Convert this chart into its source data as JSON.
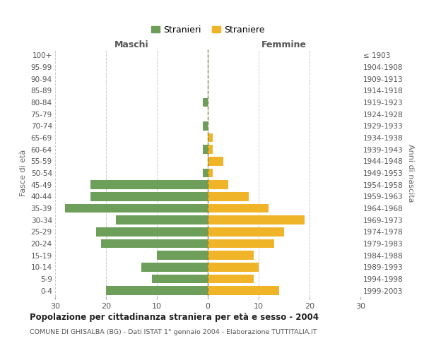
{
  "age_groups": [
    "0-4",
    "5-9",
    "10-14",
    "15-19",
    "20-24",
    "25-29",
    "30-34",
    "35-39",
    "40-44",
    "45-49",
    "50-54",
    "55-59",
    "60-64",
    "65-69",
    "70-74",
    "75-79",
    "80-84",
    "85-89",
    "90-94",
    "95-99",
    "100+"
  ],
  "birth_years": [
    "1999-2003",
    "1994-1998",
    "1989-1993",
    "1984-1988",
    "1979-1983",
    "1974-1978",
    "1969-1973",
    "1964-1968",
    "1959-1963",
    "1954-1958",
    "1949-1953",
    "1944-1948",
    "1939-1943",
    "1934-1938",
    "1929-1933",
    "1924-1928",
    "1919-1923",
    "1914-1918",
    "1909-1913",
    "1904-1908",
    "≤ 1903"
  ],
  "males": [
    20,
    11,
    13,
    10,
    21,
    22,
    18,
    28,
    23,
    23,
    1,
    0,
    1,
    0,
    1,
    0,
    1,
    0,
    0,
    0,
    0
  ],
  "females": [
    14,
    9,
    10,
    9,
    13,
    15,
    19,
    12,
    8,
    4,
    1,
    3,
    1,
    1,
    0,
    0,
    0,
    0,
    0,
    0,
    0
  ],
  "male_color": "#6d9e5a",
  "female_color": "#f0b429",
  "title": "Popolazione per cittadinanza straniera per età e sesso - 2004",
  "subtitle": "COMUNE DI GHISALBA (BG) - Dati ISTAT 1° gennaio 2004 - Elaborazione TUTTITALIA.IT",
  "xlabel_left": "Maschi",
  "xlabel_right": "Femmine",
  "ylabel_left": "Fasce di età",
  "ylabel_right": "Anni di nascita",
  "legend_male": "Stranieri",
  "legend_female": "Straniere",
  "xlim": 30,
  "background_color": "#ffffff",
  "grid_color": "#cccccc",
  "bar_height": 0.75
}
